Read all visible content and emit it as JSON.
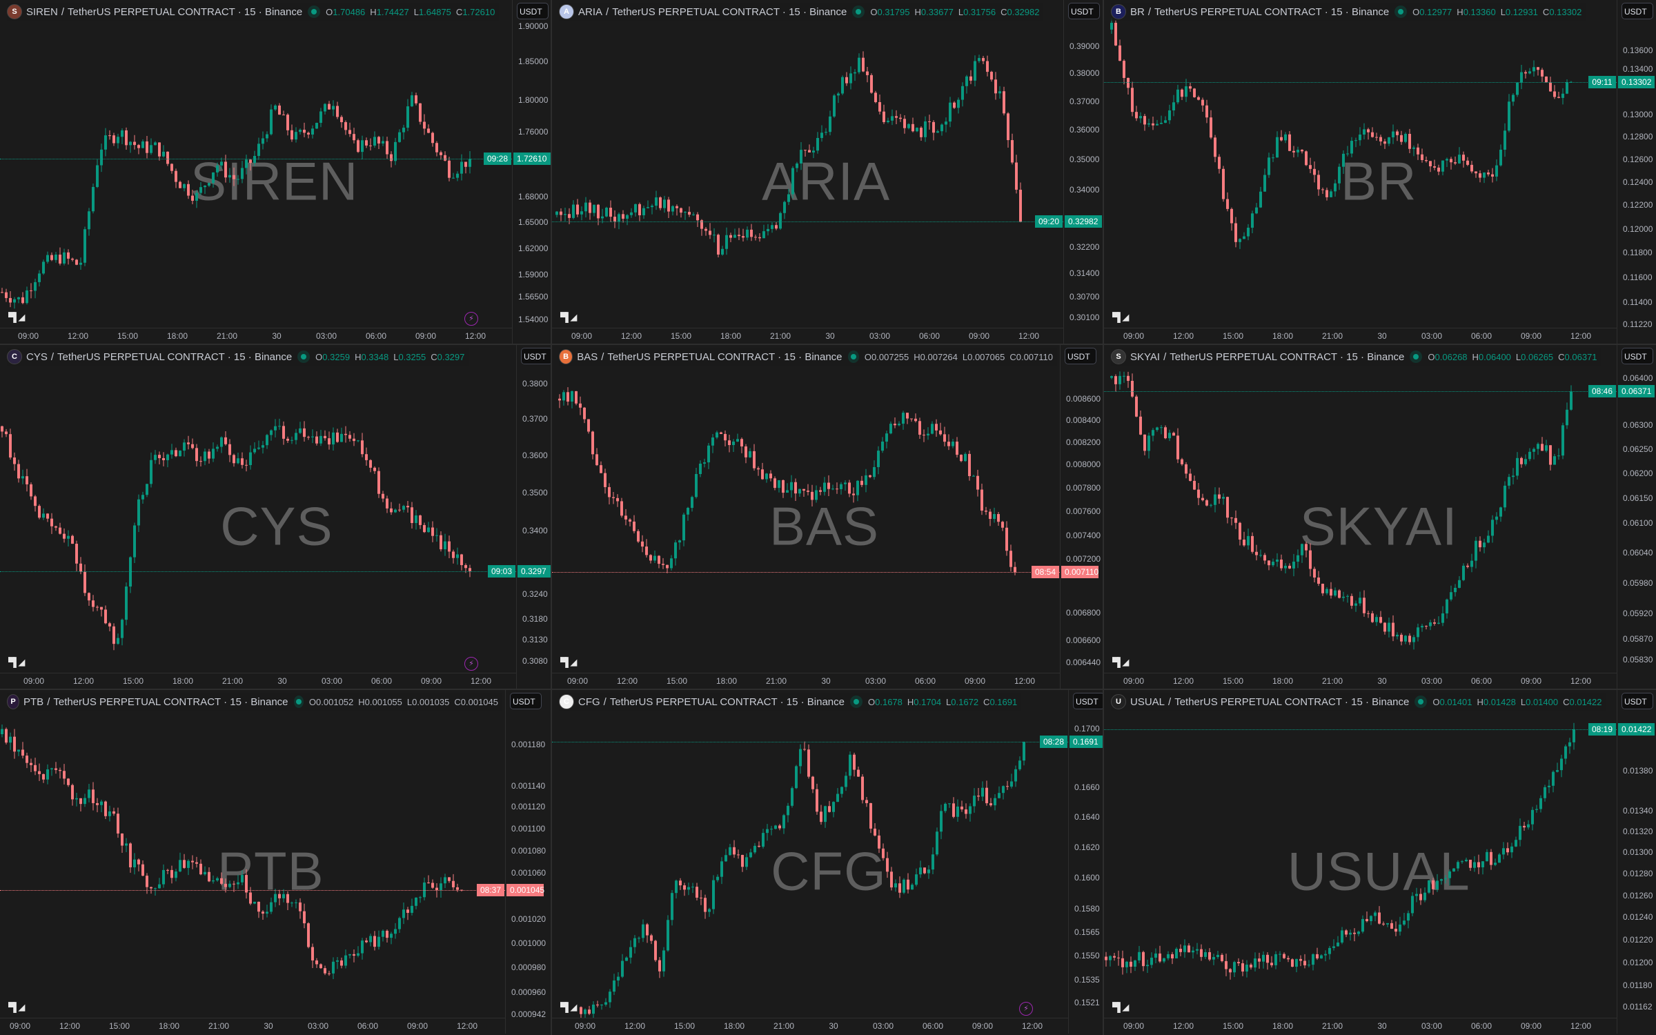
{
  "colors": {
    "up": "#089981",
    "down": "#f77c80",
    "background": "#1b1b1b"
  },
  "common": {
    "separator": "/",
    "quote_name": "TetherUS PERPETUAL CONTRACT",
    "interval": "15",
    "exchange": "Binance",
    "currency": "USDT",
    "tv_logo": "TV",
    "bolt_icon": "⚡"
  },
  "chart_data": [
    {
      "type": "candlestick",
      "symbol": "SIREN",
      "trend": "up",
      "ohlc": {
        "o": "1.70486",
        "h": "1.74427",
        "l": "1.64875",
        "c": "1.72610"
      },
      "last_price": "1.72610",
      "countdown": "09:28",
      "last_value": 1.7261,
      "ylim": [
        1.53,
        1.909
      ],
      "y_scale": "log",
      "price_ticks": [
        "1.90000",
        "1.85000",
        "1.80000",
        "1.76000",
        "1.68000",
        "1.65000",
        "1.62000",
        "1.59000",
        "1.56500",
        "1.54000"
      ],
      "time_ticks": [
        "09:00",
        "12:00",
        "15:00",
        "18:00",
        "21:00",
        "30",
        "03:00",
        "06:00",
        "09:00",
        "12:00"
      ],
      "close_path": [
        1.57,
        1.56,
        1.6,
        1.61,
        1.6,
        1.74,
        1.76,
        1.74,
        1.74,
        1.7,
        1.68,
        1.72,
        1.7,
        1.73,
        1.79,
        1.75,
        1.77,
        1.8,
        1.74,
        1.75,
        1.73,
        1.8,
        1.75,
        1.71,
        1.7261
      ],
      "bolt": true
    },
    {
      "type": "candlestick",
      "symbol": "ARIA",
      "trend": "up",
      "ohlc": {
        "o": "0.31795",
        "h": "0.33677",
        "l": "0.31756",
        "c": "0.32982"
      },
      "last_price": "0.32982",
      "countdown": "09:20",
      "last_value": 0.32982,
      "ylim": [
        0.2979,
        0.4009
      ],
      "y_scale": "log",
      "price_ticks": [
        "0.39000",
        "0.38000",
        "0.37000",
        "0.36000",
        "0.35000",
        "0.34000",
        "0.32200",
        "0.31400",
        "0.30700",
        "0.30100"
      ],
      "time_ticks": [
        "09:00",
        "12:00",
        "15:00",
        "18:00",
        "21:00",
        "30",
        "03:00",
        "06:00",
        "09:00",
        "12:00"
      ],
      "close_path": [
        0.332,
        0.334,
        0.333,
        0.331,
        0.334,
        0.336,
        0.335,
        0.331,
        0.322,
        0.326,
        0.324,
        0.33,
        0.352,
        0.355,
        0.374,
        0.385,
        0.365,
        0.362,
        0.36,
        0.362,
        0.372,
        0.386,
        0.372,
        0.32982
      ],
      "bolt": false
    },
    {
      "type": "candlestick",
      "symbol": "BR",
      "trend": "up",
      "ohlc": {
        "o": "0.12977",
        "h": "0.13360",
        "l": "0.12931",
        "c": "0.13302"
      },
      "last_price": "0.13302",
      "countdown": "09:11",
      "last_value": 0.13302,
      "ylim": [
        0.1119,
        0.1392
      ],
      "y_scale": "log",
      "price_ticks": [
        "0.13600",
        "0.13400",
        "0.13000",
        "0.12800",
        "0.12600",
        "0.12400",
        "0.12200",
        "0.12000",
        "0.11800",
        "0.11600",
        "0.11400",
        "0.11220"
      ],
      "time_ticks": [
        "09:00",
        "12:00",
        "15:00",
        "18:00",
        "21:00",
        "30",
        "03:00",
        "06:00",
        "09:00",
        "12:00"
      ],
      "close_path": [
        0.138,
        0.132,
        0.129,
        0.129,
        0.131,
        0.133,
        0.131,
        0.125,
        0.119,
        0.12,
        0.125,
        0.128,
        0.127,
        0.125,
        0.122,
        0.126,
        0.128,
        0.128,
        0.128,
        0.128,
        0.126,
        0.125,
        0.126,
        0.126,
        0.124,
        0.125,
        0.131,
        0.134,
        0.134,
        0.131,
        0.13302
      ],
      "bolt": false
    },
    {
      "type": "candlestick",
      "symbol": "CYS",
      "trend": "up",
      "ohlc": {
        "o": "0.3259",
        "h": "0.3348",
        "l": "0.3255",
        "c": "0.3297"
      },
      "last_price": "0.3297",
      "countdown": "09:03",
      "last_value": 0.3297,
      "ylim": [
        0.3051,
        0.3863
      ],
      "y_scale": "log",
      "price_ticks": [
        "0.3800",
        "0.3700",
        "0.3600",
        "0.3500",
        "0.3400",
        "0.3240",
        "0.3180",
        "0.3130",
        "0.3080"
      ],
      "time_ticks": [
        "09:00",
        "12:00",
        "15:00",
        "18:00",
        "21:00",
        "30",
        "03:00",
        "06:00",
        "09:00",
        "12:00"
      ],
      "close_path": [
        0.368,
        0.355,
        0.345,
        0.34,
        0.338,
        0.325,
        0.318,
        0.312,
        0.345,
        0.358,
        0.36,
        0.362,
        0.358,
        0.365,
        0.358,
        0.36,
        0.368,
        0.365,
        0.367,
        0.365,
        0.364,
        0.366,
        0.357,
        0.347,
        0.345,
        0.343,
        0.338,
        0.334,
        0.3297
      ],
      "bolt": true
    },
    {
      "type": "candlestick",
      "symbol": "BAS",
      "trend": "down",
      "ohlc": {
        "o": "0.007255",
        "h": "0.007264",
        "l": "0.007065",
        "c": "0.007110"
      },
      "last_price": "0.007110",
      "countdown": "08:54",
      "last_value": 0.00711,
      "ylim": [
        0.006363,
        0.00895
      ],
      "y_scale": "log",
      "price_ticks": [
        "0.008600",
        "0.008400",
        "0.008200",
        "0.008000",
        "0.007800",
        "0.007600",
        "0.007400",
        "0.007200",
        "0.006800",
        "0.006600",
        "0.006440"
      ],
      "time_ticks": [
        "09:00",
        "12:00",
        "15:00",
        "18:00",
        "21:00",
        "30",
        "03:00",
        "06:00",
        "09:00",
        "12:00"
      ],
      "close_path": [
        0.0086,
        0.0086,
        0.0082,
        0.0078,
        0.0076,
        0.0074,
        0.0072,
        0.0071,
        0.0076,
        0.008,
        0.0083,
        0.0082,
        0.0081,
        0.0079,
        0.0078,
        0.0078,
        0.0077,
        0.0078,
        0.0078,
        0.0078,
        0.008,
        0.0084,
        0.0084,
        0.0083,
        0.0083,
        0.0082,
        0.008,
        0.0076,
        0.0075,
        0.00711
      ],
      "bolt": false
    },
    {
      "type": "candlestick",
      "symbol": "SKYAI",
      "trend": "up",
      "ohlc": {
        "o": "0.06268",
        "h": "0.06400",
        "l": "0.06265",
        "c": "0.06371"
      },
      "last_price": "0.06371",
      "countdown": "08:46",
      "last_value": 0.06371,
      "ylim": [
        0.05803,
        0.06433
      ],
      "y_scale": "log",
      "price_ticks": [
        "0.06400",
        "0.06300",
        "0.06250",
        "0.06200",
        "0.06150",
        "0.06100",
        "0.06040",
        "0.05980",
        "0.05920",
        "0.05870",
        "0.05830"
      ],
      "time_ticks": [
        "09:00",
        "12:00",
        "15:00",
        "18:00",
        "21:00",
        "30",
        "03:00",
        "06:00",
        "09:00",
        "12:00"
      ],
      "close_path": [
        0.064,
        0.064,
        0.0625,
        0.063,
        0.0626,
        0.0618,
        0.0615,
        0.0614,
        0.0608,
        0.0605,
        0.0602,
        0.06,
        0.0605,
        0.0598,
        0.0596,
        0.0595,
        0.0593,
        0.059,
        0.0588,
        0.0587,
        0.059,
        0.0592,
        0.06,
        0.0605,
        0.061,
        0.0618,
        0.0624,
        0.0626,
        0.0622,
        0.06371
      ],
      "bolt": false
    },
    {
      "type": "candlestick",
      "symbol": "PTB",
      "trend": "down",
      "ohlc": {
        "o": "0.001052",
        "h": "0.001055",
        "l": "0.001035",
        "c": "0.001045"
      },
      "last_price": "0.001045",
      "countdown": "08:37",
      "last_value": 0.001045,
      "ylim": [
        0.000939,
        0.001217
      ],
      "y_scale": "log",
      "price_ticks": [
        "0.001180",
        "0.001140",
        "0.001120",
        "0.001100",
        "0.001080",
        "0.001060",
        "0.001020",
        "0.001000",
        "0.000980",
        "0.000960",
        "0.000942"
      ],
      "time_ticks": [
        "09:00",
        "12:00",
        "15:00",
        "18:00",
        "21:00",
        "30",
        "03:00",
        "06:00",
        "09:00",
        "12:00"
      ],
      "close_path": [
        0.00119,
        0.00117,
        0.00115,
        0.00115,
        0.00113,
        0.00113,
        0.00111,
        0.00107,
        0.00105,
        0.00106,
        0.00107,
        0.00106,
        0.00105,
        0.00106,
        0.00102,
        0.00104,
        0.00104,
        0.00098,
        0.00098,
        0.00099,
        0.001,
        0.00101,
        0.00103,
        0.00105,
        0.00105,
        0.001045
      ],
      "bolt": false
    },
    {
      "type": "candlestick",
      "symbol": "CFG",
      "trend": "up",
      "ohlc": {
        "o": "0.1678",
        "h": "0.1704",
        "l": "0.1672",
        "c": "0.1691"
      },
      "last_price": "0.1691",
      "countdown": "08:28",
      "last_value": 0.1691,
      "ylim": [
        0.1511,
        0.1715
      ],
      "y_scale": "log",
      "price_ticks": [
        "0.1700",
        "0.1660",
        "0.1640",
        "0.1620",
        "0.1600",
        "0.1580",
        "0.1565",
        "0.1550",
        "0.1535",
        "0.1521"
      ],
      "time_ticks": [
        "09:00",
        "12:00",
        "15:00",
        "18:00",
        "21:00",
        "30",
        "03:00",
        "06:00",
        "09:00",
        "12:00"
      ],
      "close_path": [
        0.1518,
        0.1515,
        0.153,
        0.1555,
        0.157,
        0.154,
        0.16,
        0.159,
        0.158,
        0.162,
        0.161,
        0.162,
        0.163,
        0.164,
        0.169,
        0.164,
        0.165,
        0.168,
        0.165,
        0.161,
        0.159,
        0.16,
        0.161,
        0.165,
        0.164,
        0.166,
        0.165,
        0.166,
        0.1691
      ],
      "bolt": true
    },
    {
      "type": "candlestick",
      "symbol": "USUAL",
      "trend": "up",
      "ohlc": {
        "o": "0.01401",
        "h": "0.01428",
        "l": "0.01400",
        "c": "0.01422"
      },
      "last_price": "0.01422",
      "countdown": "08:19",
      "last_value": 0.01422,
      "ylim": [
        0.01152,
        0.01445
      ],
      "y_scale": "log",
      "price_ticks": [
        "0.01380",
        "0.01340",
        "0.01320",
        "0.01300",
        "0.01280",
        "0.01260",
        "0.01240",
        "0.01220",
        "0.01200",
        "0.01180",
        "0.01162"
      ],
      "time_ticks": [
        "09:00",
        "12:00",
        "15:00",
        "18:00",
        "21:00",
        "30",
        "03:00",
        "06:00",
        "09:00",
        "12:00"
      ],
      "close_path": [
        0.01205,
        0.01202,
        0.01203,
        0.01205,
        0.01212,
        0.01206,
        0.01202,
        0.01193,
        0.012,
        0.01204,
        0.012,
        0.01202,
        0.01212,
        0.01222,
        0.0123,
        0.0124,
        0.01232,
        0.01252,
        0.0127,
        0.01282,
        0.0129,
        0.01292,
        0.013,
        0.0132,
        0.01348,
        0.01385,
        0.01422
      ],
      "bolt": false
    }
  ],
  "icons": [
    "siren-coin-icon",
    "aria-coin-icon",
    "br-coin-icon",
    "cys-coin-icon",
    "bas-coin-icon",
    "skyai-coin-icon",
    "ptb-coin-icon",
    "cfg-coin-icon",
    "usual-coin-icon"
  ]
}
